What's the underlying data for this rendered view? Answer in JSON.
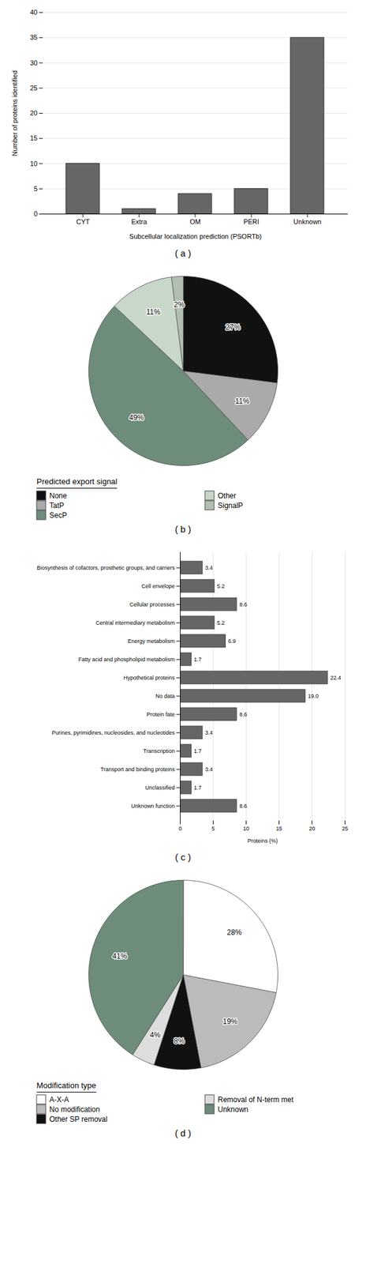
{
  "chart_data": [
    {
      "type": "bar",
      "title": "( a )",
      "categories": [
        "CYT",
        "Extra",
        "OM",
        "PERI",
        "Unknown"
      ],
      "values": [
        10,
        1,
        4,
        5,
        35
      ],
      "color": "#666666",
      "xlabel": "Subcellular localization prediction (PSORTb)",
      "ylabel": "Number of proteins identified",
      "ylim": [
        0,
        40
      ],
      "yticks": [
        0,
        5,
        10,
        15,
        20,
        25,
        30,
        35,
        40
      ],
      "grid": true
    },
    {
      "type": "pie",
      "title": "( b )",
      "legend_title": "Predicted export signal",
      "categories": [
        "None",
        "TatP",
        "SecP",
        "Other",
        "SignalP"
      ],
      "values": [
        27,
        11,
        49,
        11,
        2
      ],
      "value_labels": [
        "27%",
        "11%",
        "49%",
        "11%",
        "2%"
      ],
      "colors": [
        "#111111",
        "#aaaaaa",
        "#6e8c7a",
        "#c8d8c8",
        "#b0bfb0"
      ],
      "data_labels": true,
      "legend": "bottom"
    },
    {
      "type": "bar",
      "orientation": "horizontal",
      "title": "( c )",
      "categories": [
        "Biosynthesis of cofactors, prosthetic groups, and carriers",
        "Cell envelope",
        "Cellular processes",
        "Central intermediary metabolism",
        "Energy metabolism",
        "Fatty acid and phospholipid metabolism",
        "Hypothetical proteins",
        "No data",
        "Protein fate",
        "Purines, pyrimidines, nucleosides, and nucleotides",
        "Transcription",
        "Transport and binding proteins",
        "Unclassified",
        "Unknown function"
      ],
      "values": [
        3.4,
        5.2,
        8.6,
        5.2,
        6.9,
        1.7,
        22.4,
        19.0,
        8.6,
        3.4,
        1.7,
        3.4,
        1.7,
        8.6
      ],
      "value_labels": [
        "3.4",
        "5.2",
        "8.6",
        "5.2",
        "6.9",
        "1.7",
        "22.4",
        "19.0",
        "8.6",
        "3.4",
        "1.7",
        "3.4",
        "1.7",
        "8.6"
      ],
      "data_labels": true,
      "color": "#666666",
      "xlabel": "Proteins (%)",
      "xlim": [
        0,
        25
      ],
      "xticks": [
        0,
        5,
        10,
        15,
        20,
        25
      ],
      "grid": true
    },
    {
      "type": "pie",
      "title": "( d )",
      "legend_title": "Modification type",
      "categories": [
        "A-X-A",
        "No modification",
        "Other SP removal",
        "Removal of N-term met",
        "Unknown"
      ],
      "values": [
        28,
        19,
        8,
        4,
        41
      ],
      "value_labels": [
        "28%",
        "19%",
        "8%",
        "4%",
        "41%"
      ],
      "colors": [
        "white",
        "#bbbbbb",
        "#111111",
        "#dddddd",
        "#6e8c7a"
      ],
      "data_labels": true,
      "legend": "bottom"
    }
  ]
}
